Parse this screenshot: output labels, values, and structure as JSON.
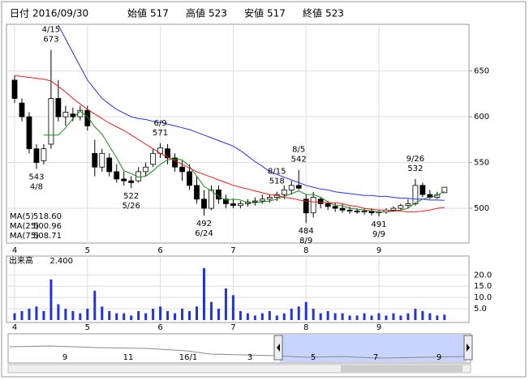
{
  "header": {
    "items": [
      {
        "label": "日付",
        "value": "2016/09/30"
      },
      {
        "label": "始値",
        "value": 517
      },
      {
        "label": "高値",
        "value": 523,
        "color": "#e0201b"
      },
      {
        "label": "安値",
        "value": 517,
        "color": "#1a8a1a"
      },
      {
        "label": "終値",
        "value": 523
      }
    ]
  },
  "chart_data": [
    {
      "type": "candlestick",
      "categories": [
        "4",
        null,
        null,
        null,
        null,
        null,
        null,
        null,
        null,
        null,
        "5",
        null,
        null,
        null,
        null,
        null,
        null,
        null,
        null,
        null,
        "6",
        null,
        null,
        null,
        null,
        null,
        null,
        null,
        null,
        null,
        "7",
        null,
        null,
        null,
        null,
        null,
        null,
        null,
        null,
        null,
        "8",
        null,
        null,
        null,
        null,
        null,
        null,
        null,
        null,
        null,
        "9",
        null,
        null,
        null,
        null,
        null,
        null,
        null,
        null,
        null
      ],
      "open": [
        640,
        615,
        600,
        565,
        552,
        570,
        620,
        600,
        603,
        600,
        607,
        560,
        545,
        555,
        540,
        532,
        530,
        530,
        540,
        548,
        560,
        565,
        555,
        545,
        540,
        525,
        510,
        500,
        520,
        510,
        505,
        503,
        505,
        507,
        508,
        510,
        512,
        515,
        520,
        525,
        510,
        495,
        510,
        505,
        502,
        500,
        498,
        497,
        496,
        497,
        495,
        496,
        498,
        500,
        503,
        505,
        525,
        515,
        512,
        517
      ],
      "high": [
        645,
        620,
        605,
        570,
        570,
        673,
        640,
        612,
        610,
        612,
        612,
        575,
        565,
        560,
        548,
        540,
        535,
        545,
        550,
        565,
        571,
        570,
        560,
        552,
        548,
        535,
        520,
        525,
        525,
        515,
        510,
        508,
        510,
        512,
        515,
        515,
        518,
        525,
        530,
        542,
        515,
        518,
        512,
        508,
        506,
        505,
        502,
        500,
        500,
        500,
        498,
        500,
        502,
        505,
        510,
        532,
        528,
        520,
        518,
        523
      ],
      "low": [
        615,
        595,
        560,
        543,
        548,
        565,
        595,
        590,
        595,
        596,
        585,
        535,
        540,
        535,
        528,
        525,
        522,
        528,
        535,
        545,
        555,
        548,
        540,
        530,
        520,
        505,
        492,
        498,
        505,
        500,
        500,
        500,
        502,
        503,
        505,
        506,
        508,
        510,
        515,
        520,
        484,
        490,
        500,
        498,
        496,
        495,
        494,
        494,
        493,
        492,
        491,
        494,
        496,
        498,
        500,
        503,
        512,
        510,
        510,
        517
      ],
      "close": [
        620,
        600,
        565,
        550,
        565,
        620,
        600,
        605,
        600,
        607,
        590,
        545,
        560,
        540,
        532,
        530,
        528,
        540,
        545,
        560,
        566,
        555,
        545,
        540,
        525,
        510,
        500,
        520,
        510,
        505,
        503,
        505,
        507,
        508,
        510,
        512,
        515,
        520,
        525,
        522,
        495,
        512,
        505,
        502,
        500,
        498,
        497,
        496,
        497,
        495,
        496,
        498,
        500,
        503,
        505,
        525,
        515,
        512,
        515,
        523
      ],
      "series": [
        {
          "name": "MA(5)",
          "legend_value": "518.60",
          "color": "#1a8a1a",
          "values": [
            null,
            null,
            null,
            null,
            580,
            580,
            580,
            588,
            598,
            606,
            600,
            589,
            581,
            568,
            555,
            541,
            538,
            534,
            535,
            541,
            548,
            553,
            554,
            553,
            546,
            535,
            524,
            519,
            513,
            509,
            510,
            509,
            506,
            506,
            507,
            508,
            510,
            513,
            516,
            519,
            515,
            515,
            512,
            507,
            503,
            503,
            500,
            499,
            498,
            497,
            496,
            496,
            497,
            498,
            500,
            506,
            510,
            512,
            514,
            518.6
          ]
        },
        {
          "name": "MA(25)",
          "legend_value": "500.96",
          "color": "#e0201b",
          "values": [
            645,
            644,
            643,
            642,
            641,
            639,
            633,
            627,
            620,
            614,
            608,
            603,
            598,
            593,
            589,
            585,
            580,
            575,
            570,
            565,
            560,
            556,
            552,
            548,
            544,
            540,
            537,
            534,
            531,
            528,
            525,
            523,
            521,
            519,
            517,
            515,
            514,
            512,
            511,
            509,
            508,
            507,
            507,
            506,
            506,
            505,
            503,
            502,
            500,
            499,
            498,
            498,
            497,
            497,
            496,
            496,
            497,
            498,
            500,
            500.96
          ]
        },
        {
          "name": "MA(75)",
          "legend_value": "508.71",
          "color": "#2233dd",
          "values": [
            null,
            null,
            null,
            null,
            null,
            null,
            700,
            685,
            670,
            655,
            640,
            630,
            620,
            614,
            608,
            604,
            600,
            598,
            597,
            595,
            594,
            592,
            590,
            588,
            586,
            583,
            580,
            577,
            574,
            571,
            568,
            563,
            557,
            551,
            546,
            540,
            537,
            534,
            531,
            528,
            525,
            523,
            521,
            520,
            518,
            517,
            516,
            515,
            514,
            514,
            513,
            513,
            512,
            511,
            511,
            510,
            510,
            509,
            509,
            508.71
          ]
        }
      ],
      "ylim": [
        462,
        701
      ],
      "yticks": [
        500,
        550,
        600,
        650
      ],
      "grid": true,
      "annotations": [
        {
          "date": "4/15",
          "price": 673,
          "position": "above"
        },
        {
          "date": "4/8",
          "price": 543,
          "position": "below"
        },
        {
          "date": "6/9",
          "price": 571,
          "position": "above"
        },
        {
          "date": "5/26",
          "price": 522,
          "position": "below"
        },
        {
          "date": "6/24",
          "price": 492,
          "position": "below"
        },
        {
          "date": "8/5",
          "price": 542,
          "position": "above"
        },
        {
          "date": "8/15",
          "price": 518,
          "position": "above"
        },
        {
          "date": "8/9",
          "price": 484,
          "position": "below"
        },
        {
          "date": "9/9",
          "price": 491,
          "position": "below"
        },
        {
          "date": "9/26",
          "price": 532,
          "position": "above"
        }
      ]
    },
    {
      "type": "bar",
      "title": "出来高",
      "value_label": "2.400",
      "color": "#2233dd",
      "categories": [
        "4",
        null,
        null,
        null,
        null,
        null,
        null,
        null,
        null,
        null,
        "5",
        null,
        null,
        null,
        null,
        null,
        null,
        null,
        null,
        null,
        "6",
        null,
        null,
        null,
        null,
        null,
        null,
        null,
        null,
        null,
        "7",
        null,
        null,
        null,
        null,
        null,
        null,
        null,
        null,
        null,
        "8",
        null,
        null,
        null,
        null,
        null,
        null,
        null,
        null,
        null,
        "9",
        null,
        null,
        null,
        null,
        null,
        null,
        null,
        null,
        null
      ],
      "values": [
        3,
        4,
        5,
        6,
        4,
        18,
        7,
        5,
        4,
        3,
        5,
        13,
        6,
        4,
        3,
        3,
        2,
        4,
        3,
        5,
        6,
        4,
        3,
        5,
        4,
        6,
        23,
        8,
        5,
        14,
        11,
        4,
        3,
        2,
        3,
        4,
        2,
        3,
        5,
        6,
        8,
        5,
        3,
        4,
        3,
        3,
        2,
        2,
        3,
        2,
        3,
        2,
        3,
        2,
        3,
        5,
        4,
        3,
        2,
        2.4
      ],
      "ylim": [
        0,
        28
      ],
      "yticks": [
        {
          "value": 5,
          "label": "5.0"
        },
        {
          "value": 10,
          "label": "10.0"
        },
        {
          "value": 15,
          "label": "15.0"
        },
        {
          "value": 20,
          "label": "20.0"
        }
      ],
      "grid": true
    }
  ],
  "navigator": {
    "labels": [
      "9",
      "11",
      "16/1",
      "3",
      "5",
      "7",
      "9"
    ]
  }
}
